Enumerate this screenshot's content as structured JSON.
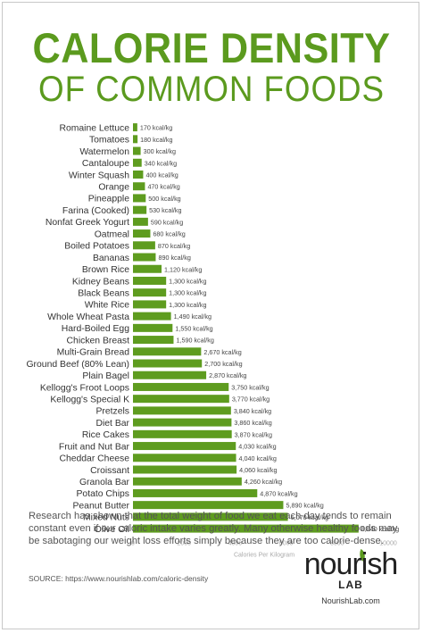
{
  "title_line1": "CALORIE DENSITY",
  "title_line2": "OF COMMON FOODS",
  "description": "Research has shown that the total weight of food we eat each day tends to remain constant even if our caloric intake varies greatly.  Many otherwise healthy foods may be sabotaging our weight loss efforts simply because they are too calorie-dense.",
  "source": "SOURCE: https://www.nourishlab.com/caloric-density",
  "logo": {
    "word": "nourish",
    "sub": "LAB",
    "url": "NourishLab.com"
  },
  "colors": {
    "accent": "#5b9a1e",
    "bar": "#5e9c1f",
    "text": "#333333",
    "axis_text": "#aaaaaa"
  },
  "chart_data": {
    "type": "bar",
    "orientation": "horizontal",
    "unit_suffix": " kcal/kg",
    "xlabel": "Calories Per Kilogram",
    "xlim": [
      0,
      10000
    ],
    "xticks": [
      0,
      2000,
      4000,
      6000,
      8000,
      10000
    ],
    "xtick_labels": [
      "0",
      "2000",
      "4000",
      "6000",
      "8000",
      "10000"
    ],
    "grid": false,
    "categories": [
      "Romaine Lettuce",
      "Tomatoes",
      "Watermelon",
      "Cantaloupe",
      "Winter Squash",
      "Orange",
      "Pineapple",
      "Farina (Cooked)",
      "Nonfat Greek Yogurt",
      "Oatmeal",
      "Boiled Potatoes",
      "Bananas",
      "Brown Rice",
      "Kidney Beans",
      "Black Beans",
      "White Rice",
      "Whole Wheat Pasta",
      "Hard-Boiled Egg",
      "Chicken Breast",
      "Multi-Grain Bread",
      "Ground Beef (80% Lean)",
      "Plain Bagel",
      "Kellogg's Froot Loops",
      "Kellogg's Special K",
      "Pretzels",
      "Diet Bar",
      "Rice Cakes",
      "Fruit and Nut Bar",
      "Cheddar Cheese",
      "Croissant",
      "Granola Bar",
      "Potato Chips",
      "Peanut Butter",
      "Mixed Nuts",
      "Olive Oil"
    ],
    "values": [
      170,
      180,
      300,
      340,
      400,
      470,
      500,
      530,
      590,
      680,
      870,
      890,
      1120,
      1300,
      1300,
      1300,
      1490,
      1550,
      1590,
      2670,
      2700,
      2870,
      3750,
      3770,
      3840,
      3860,
      3870,
      4030,
      4040,
      4060,
      4260,
      4870,
      5890,
      6070,
      8840
    ],
    "value_labels": [
      "170 kcal/kg",
      "180 kcal/kg",
      "300 kcal/kg",
      "340 kcal/kg",
      "400 kcal/kg",
      "470 kcal/kg",
      "500 kcal/kg",
      "530 kcal/kg",
      "590 kcal/kg",
      "680 kcal/kg",
      "870 kcal/kg",
      "890 kcal/kg",
      "1,120 kcal/kg",
      "1,300 kcal/kg",
      "1,300 kcal/kg",
      "1,300 kcal/kg",
      "1,490 kcal/kg",
      "1,550 kcal/kg",
      "1,590 kcal/kg",
      "2,670 kcal/kg",
      "2,700 kcal/kg",
      "2,870 kcal/kg",
      "3,750 kcal/kg",
      "3,770 kcal/kg",
      "3,840 kcal/kg",
      "3,860 kcal/kg",
      "3,870 kcal/kg",
      "4,030 kcal/kg",
      "4,040 kcal/kg",
      "4,060 kcal/kg",
      "4,260 kcal/kg",
      "4,870 kcal/kg",
      "5,890 kcal/kg",
      "6,070 kcal/kg",
      "8,840 kcal/kg"
    ]
  }
}
